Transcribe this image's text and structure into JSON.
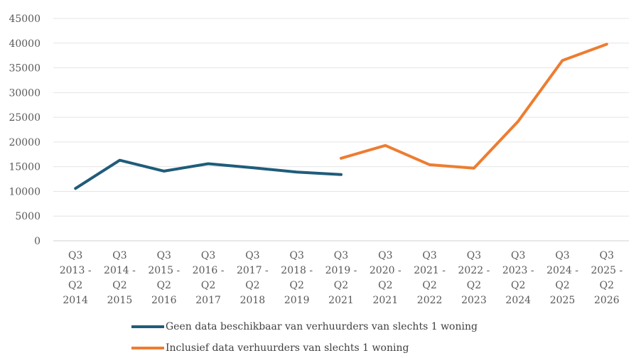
{
  "chart_data": {
    "type": "line",
    "title": "",
    "xlabel": "",
    "ylabel": "",
    "ylim": [
      0,
      45000
    ],
    "yticks": [
      0,
      5000,
      10000,
      15000,
      20000,
      25000,
      30000,
      35000,
      40000,
      45000
    ],
    "categories": [
      [
        "Q3",
        "2013 -",
        "Q2",
        "2014"
      ],
      [
        "Q3",
        "2014 -",
        "Q2",
        "2015"
      ],
      [
        "Q3",
        "2015 -",
        "Q2",
        "2016"
      ],
      [
        "Q3",
        "2016 -",
        "Q2",
        "2017"
      ],
      [
        "Q3",
        "2017 -",
        "Q2",
        "2018"
      ],
      [
        "Q3",
        "2018 -",
        "Q2",
        "2019"
      ],
      [
        "Q3",
        "2019 -",
        "Q2",
        "2021"
      ],
      [
        "Q3",
        "2020 -",
        "Q2",
        "2021"
      ],
      [
        "Q3",
        "2021 -",
        "Q2",
        "2022"
      ],
      [
        "Q3",
        "2022 -",
        "Q2",
        "2023"
      ],
      [
        "Q3",
        "2023 -",
        "Q2",
        "2024"
      ],
      [
        "Q3",
        "2024 -",
        "Q2",
        "2025"
      ],
      [
        "Q3",
        "2025 -",
        "Q2",
        "2026"
      ]
    ],
    "grid": true,
    "legend_position": "bottom",
    "series": [
      {
        "name": "Geen data beschikbaar van verhuurders van slechts 1 woning",
        "color": "#1f5c7a",
        "values": [
          10600,
          16300,
          14100,
          15600,
          14800,
          13900,
          13400,
          null,
          null,
          null,
          null,
          null,
          null
        ]
      },
      {
        "name": "Inclusief data verhuurders van slechts 1 woning",
        "color": "#ed7d31",
        "values": [
          null,
          null,
          null,
          null,
          null,
          null,
          16700,
          19300,
          15400,
          14700,
          24200,
          36500,
          39800
        ]
      }
    ]
  }
}
